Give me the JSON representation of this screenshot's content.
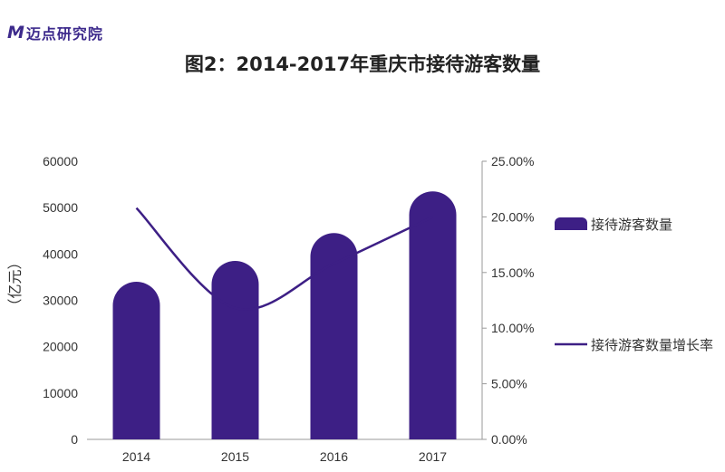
{
  "logo": {
    "mark": "M",
    "text": "迈点研究院"
  },
  "chart_data": {
    "type": "bar",
    "title": "图2：2014-2017年重庆市接待游客数量",
    "categories": [
      "2014",
      "2015",
      "2016",
      "2017"
    ],
    "ylabel": "（亿元）",
    "ylim": [
      0,
      60000
    ],
    "yticks": [
      "0",
      "10000",
      "20000",
      "30000",
      "40000",
      "50000",
      "60000"
    ],
    "y2lim": [
      0,
      0.25
    ],
    "y2ticks": [
      "0.00%",
      "5.00%",
      "10.00%",
      "15.00%",
      "20.00%",
      "25.00%"
    ],
    "series": [
      {
        "name": "接待游客数量",
        "type": "bar",
        "axis": "left",
        "color": "#3d1f85",
        "values": [
          34000,
          38500,
          44500,
          53500
        ]
      },
      {
        "name": "接待游客数量增长率",
        "type": "line",
        "axis": "right",
        "color": "#3d1f85",
        "values": [
          0.208,
          0.118,
          0.158,
          0.2
        ]
      }
    ],
    "legend": "right",
    "grid": false
  }
}
